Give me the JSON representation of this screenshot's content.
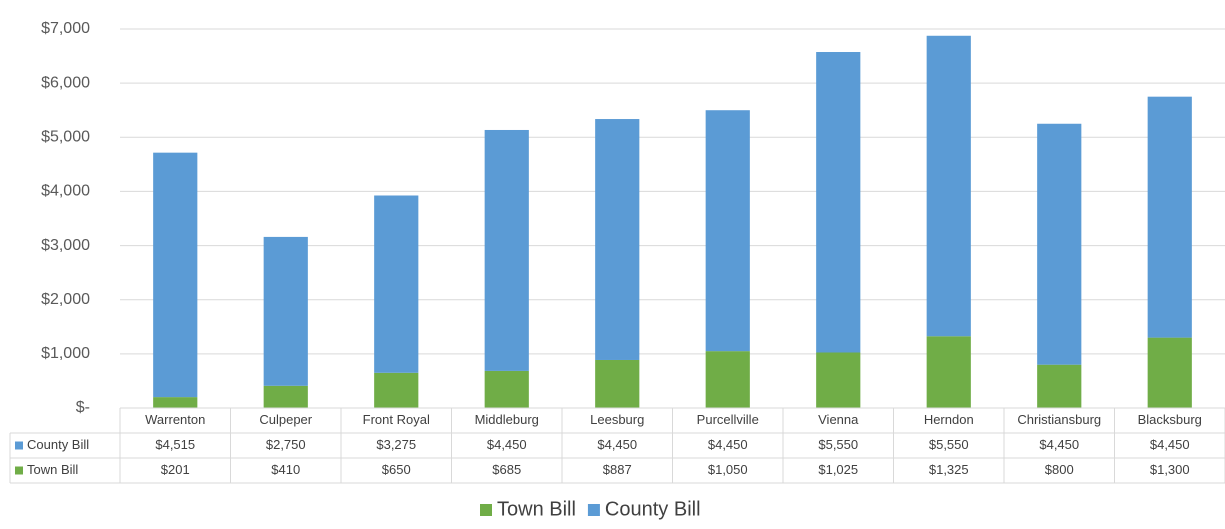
{
  "chart_data": {
    "type": "bar",
    "stacked": true,
    "categories": [
      "Warrenton",
      "Culpeper",
      "Front Royal",
      "Middleburg",
      "Leesburg",
      "Purcellville",
      "Vienna",
      "Herndon",
      "Christiansburg",
      "Blacksburg"
    ],
    "series": [
      {
        "name": "Town Bill",
        "color": "#70ad47",
        "values": [
          201,
          410,
          650,
          685,
          887,
          1050,
          1025,
          1325,
          800,
          1300
        ],
        "value_labels": [
          "$201",
          "$410",
          "$650",
          "$685",
          "$887",
          "$1,050",
          "$1,025",
          "$1,325",
          "$800",
          "$1,300"
        ]
      },
      {
        "name": "County Bill",
        "color": "#5b9bd5",
        "values": [
          4515,
          2750,
          3275,
          4450,
          4450,
          4450,
          5550,
          5550,
          4450,
          4450
        ],
        "value_labels": [
          "$4,515",
          "$2,750",
          "$3,275",
          "$4,450",
          "$4,450",
          "$4,450",
          "$5,550",
          "$5,550",
          "$4,450",
          "$4,450"
        ]
      }
    ],
    "ylim": [
      0,
      7000
    ],
    "yticks": [
      {
        "value": 0,
        "label": "$-"
      },
      {
        "value": 1000,
        "label": "$1,000"
      },
      {
        "value": 2000,
        "label": "$2,000"
      },
      {
        "value": 3000,
        "label": "$3,000"
      },
      {
        "value": 4000,
        "label": "$4,000"
      },
      {
        "value": 5000,
        "label": "$5,000"
      },
      {
        "value": 6000,
        "label": "$6,000"
      },
      {
        "value": 7000,
        "label": "$7,000"
      }
    ],
    "grid": true,
    "data_table": true,
    "legend": "bottom"
  }
}
